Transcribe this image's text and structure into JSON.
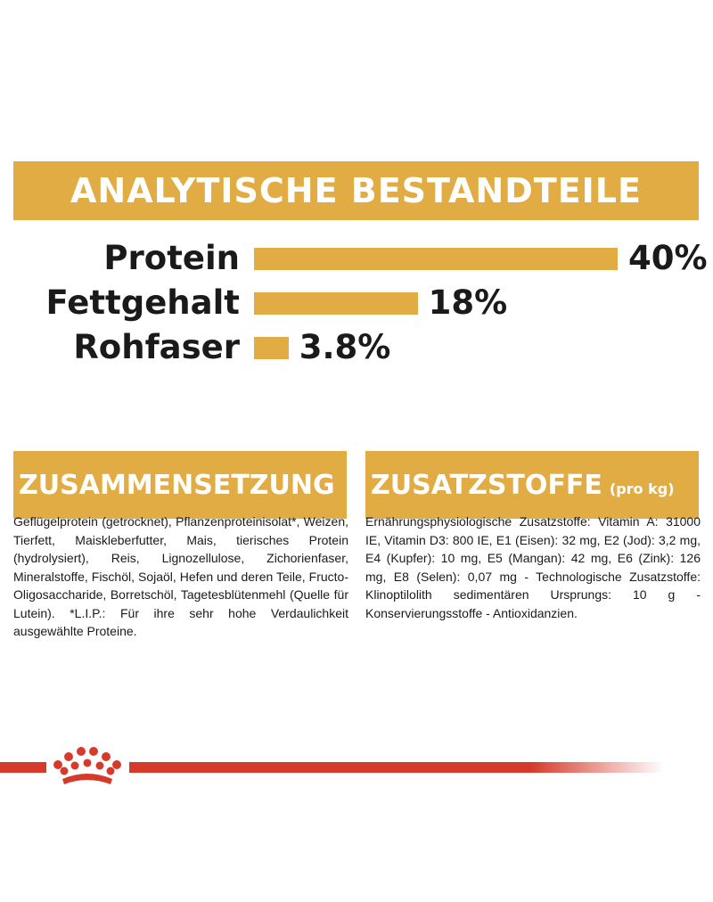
{
  "banner": {
    "title": "ANALYTISCHE BESTANDTEILE"
  },
  "nutrients": [
    {
      "label": "Protein",
      "value": "40%",
      "percent": 40
    },
    {
      "label": "Fettgehalt",
      "value": "18%",
      "percent": 18
    },
    {
      "label": "Rohfaser",
      "value": "3.8%",
      "percent": 3.8
    }
  ],
  "composition": {
    "title": "ZUSAMMENSETZUNG",
    "text": "Geflügelprotein (getrocknet), Pflanzenproteinisolat*, Weizen, Tierfett, Maiskleberfutter, Mais, tierisches Protein (hydrolysiert), Reis, Lignozellulose, Zichorienfaser, Mineralstoffe, Fischöl, Sojaöl, Hefen und deren Teile, Fructo-Oligosaccharide, Borretschöl, Tagetesblütenmehl (Quelle für Lutein). *L.I.P.: Für ihre sehr hohe Verdaulichkeit ausgewählte Proteine."
  },
  "additives": {
    "title": "ZUSATZSTOFFE",
    "subtitle": "(pro kg)",
    "text": "Ernährungsphysiologische Zusatzstoffe: Vitamin A: 31000 IE, Vitamin D3: 800 IE, E1 (Eisen): 32 mg, E2 (Jod): 3,2 mg, E4 (Kupfer): 10 mg, E5 (Mangan): 42 mg, E6 (Zink): 126 mg, E8 (Selen): 0,07 mg - Technologische Zusatzstoffe: Klinoptilolith sedimentären Ursprungs: 10 g - Konservierungsstoffe - Antioxidanzien."
  },
  "colors": {
    "accent": "#e2ac45",
    "brand_red": "#d63a2a",
    "text": "#1a1a1a"
  },
  "icons": {
    "logo": "royal-canin-crown-icon"
  }
}
